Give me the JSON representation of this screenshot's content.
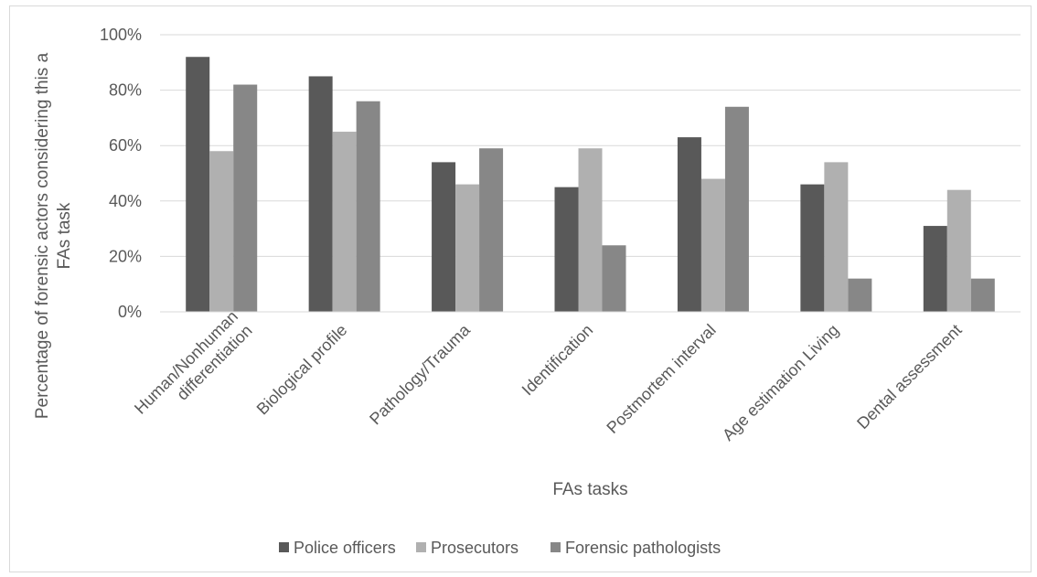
{
  "chart_data": {
    "type": "bar",
    "title": "",
    "xlabel": "FAs tasks",
    "ylabel": "Percentage of forensic actors considering this a FAs task",
    "ylabel_lines": [
      "Percentage of forensic actors considering this a",
      "FAs task"
    ],
    "ylim": [
      0,
      100
    ],
    "y_ticks": [
      0,
      20,
      40,
      60,
      80,
      100
    ],
    "y_tick_labels": [
      "0%",
      "20%",
      "40%",
      "60%",
      "80%",
      "100%"
    ],
    "grid": true,
    "legend_position": "bottom",
    "categories": [
      "Human/Nonhuman differentiation",
      "Biological profile",
      "Pathology/Trauma",
      "Identification",
      "Postmortem interval",
      "Age estimation Living",
      "Dental assessment"
    ],
    "category_lines": [
      [
        "Human/Nonhuman",
        "differentiation"
      ],
      [
        "Biological profile"
      ],
      [
        "Pathology/Trauma"
      ],
      [
        "Identification"
      ],
      [
        "Postmortem interval"
      ],
      [
        "Age estimation Living"
      ],
      [
        "Dental assessment"
      ]
    ],
    "series": [
      {
        "name": "Police officers",
        "color": "#595959",
        "values": [
          92,
          85,
          54,
          45,
          63,
          46,
          31
        ]
      },
      {
        "name": "Prosecutors",
        "color": "#b0b0b0",
        "values": [
          58,
          65,
          46,
          59,
          48,
          54,
          44
        ]
      },
      {
        "name": "Forensic pathologists",
        "color": "#878787",
        "values": [
          82,
          76,
          59,
          24,
          74,
          12,
          12
        ]
      }
    ]
  }
}
